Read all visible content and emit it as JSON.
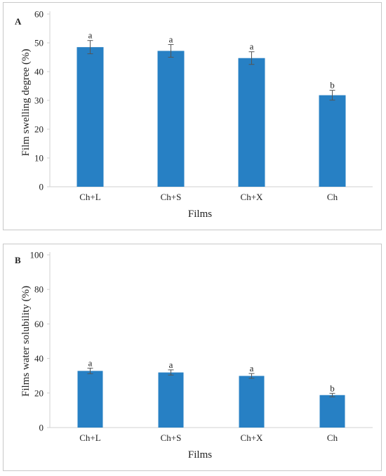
{
  "colors": {
    "bar": "#2780c4",
    "axis": "#d0d0d0",
    "error_bar": "#555555",
    "text": "#222222"
  },
  "chart_data": [
    {
      "type": "bar",
      "panel_label": "A",
      "categories": [
        "Ch+L",
        "Ch+S",
        "Ch+X",
        "Ch"
      ],
      "values": [
        48.5,
        47.2,
        44.7,
        31.8
      ],
      "errors": [
        2.3,
        2.2,
        2.2,
        1.7
      ],
      "significance": [
        "a",
        "a",
        "a",
        "b"
      ],
      "xlabel": "Films",
      "ylabel": "Film swelling degree (%)",
      "ylim": [
        0,
        60
      ],
      "yticks": [
        0,
        10,
        20,
        30,
        40,
        50,
        60
      ],
      "yticklabels": [
        "0",
        "10",
        "20",
        "30",
        "40",
        "50",
        "60"
      ],
      "grid": false,
      "legend": "none"
    },
    {
      "type": "bar",
      "panel_label": "B",
      "categories": [
        "Ch+L",
        "Ch+S",
        "Ch+X",
        "Ch"
      ],
      "values": [
        32.8,
        31.9,
        29.9,
        18.8
      ],
      "errors": [
        1.6,
        1.5,
        1.4,
        1.0
      ],
      "significance": [
        "a",
        "a",
        "a",
        "b"
      ],
      "xlabel": "Films",
      "ylabel": "Films water solubility (%)",
      "ylim": [
        0,
        100
      ],
      "yticks": [
        0,
        20,
        40,
        60,
        80,
        100
      ],
      "yticklabels": [
        "0",
        "20",
        "40",
        "60",
        "80",
        "100"
      ],
      "grid": false,
      "legend": "none"
    }
  ]
}
